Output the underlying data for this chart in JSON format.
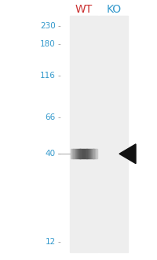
{
  "background_color": "#ffffff",
  "lane_bg_color": "#eeeeee",
  "label_wt": "WT",
  "label_ko": "KO",
  "label_color_wt": "#cc3333",
  "label_color_ko": "#3399cc",
  "label_fontsize": 10,
  "mw_values": [
    230,
    180,
    116,
    66,
    40,
    12
  ],
  "mw_labels": [
    "230",
    "180",
    "116",
    "66",
    "40",
    "12"
  ],
  "mw_color": "#3399cc",
  "mw_fontsize": 7.5,
  "tick_color": "#999999",
  "band_color": "#555555",
  "arrow_color": "#111111",
  "fig_width": 2.0,
  "fig_height": 3.3,
  "dpi": 100
}
